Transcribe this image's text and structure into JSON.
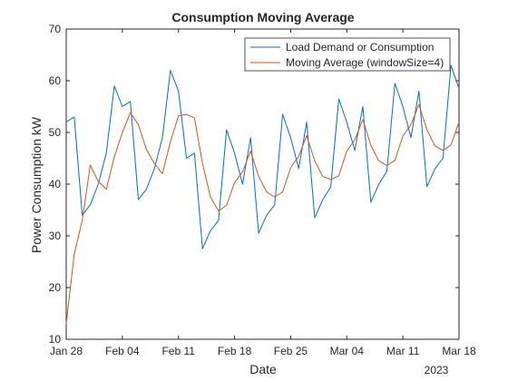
{
  "chart_data": {
    "type": "line",
    "title": "Consumption Moving Average",
    "xlabel": "Date",
    "ylabel": "Power Consumption kW",
    "x_tick_labels": [
      "Jan 28",
      "Feb 04",
      "Feb 11",
      "Feb 18",
      "Feb 25",
      "Mar 04",
      "Mar 11",
      "Mar 18"
    ],
    "x_secondary_label": "2023",
    "x_start": "2023-01-28",
    "xlim": [
      "2023-01-28",
      "2023-03-18"
    ],
    "ylim": [
      10,
      70
    ],
    "y_ticks": [
      10,
      20,
      30,
      40,
      50,
      60,
      70
    ],
    "grid": false,
    "legend_position": "top-right",
    "series": [
      {
        "name": "Load Demand or Consumption",
        "color": "#0072BD",
        "values": [
          52,
          53,
          34,
          36,
          40,
          46,
          59,
          55,
          56,
          37,
          39,
          43,
          49,
          62,
          58,
          45,
          46,
          27.5,
          31,
          33,
          50.5,
          46,
          40,
          49,
          30.5,
          34,
          36,
          53.5,
          49,
          43,
          52,
          33.5,
          37,
          39.5,
          56.5,
          52,
          46.5,
          55,
          36.5,
          40,
          42.5,
          59.5,
          55,
          49,
          58,
          39.5,
          43,
          45,
          63,
          58.5
        ]
      },
      {
        "name": "Moving Average (windowSize=4)",
        "color": "#D95319",
        "values": [
          13,
          26.5,
          33,
          43.7,
          40.5,
          39,
          45.3,
          50,
          53.8,
          51.5,
          46.7,
          44,
          42,
          48.2,
          53.2,
          53.5,
          52.8,
          44,
          37.5,
          34.8,
          35.9,
          40.3,
          42.4,
          46.4,
          41.5,
          38.5,
          37.5,
          38.5,
          43.2,
          45.4,
          49.4,
          44.5,
          41.5,
          40.9,
          41.6,
          46.4,
          48.6,
          52.5,
          47.5,
          44.5,
          43.6,
          44.6,
          49.3,
          51.5,
          55.4,
          50.5,
          47.4,
          46.5,
          47.6,
          52
        ]
      }
    ]
  }
}
